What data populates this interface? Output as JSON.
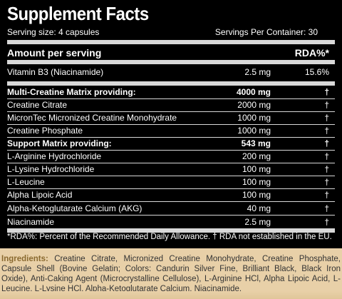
{
  "title": "Supplement Facts",
  "serving_size": "Serving size: 4 capsules",
  "servings_per_container": "Servings Per Container: 30",
  "amount_header": "Amount per serving",
  "rda_header": "RDA%*",
  "rows": [
    {
      "name": "Vitamin B3 (Niacinamide)",
      "amount": "2.5 mg",
      "rda": "15.6%"
    },
    {
      "name": "Multi-Creatine Matrix providing:",
      "amount": "4000 mg",
      "rda": "†"
    },
    {
      "name": "Creatine Citrate",
      "amount": "2000 mg",
      "rda": "†"
    },
    {
      "name": "MicronTec Micronized Creatine Monohydrate",
      "amount": "1000 mg",
      "rda": "†"
    },
    {
      "name": "Creatine Phosphate",
      "amount": "1000 mg",
      "rda": "†"
    },
    {
      "name": "Support Matrix providing:",
      "amount": "543 mg",
      "rda": "†"
    },
    {
      "name": "L-Arginine Hydrochloride",
      "amount": "200 mg",
      "rda": "†"
    },
    {
      "name": "L-Lysine Hydrochloride",
      "amount": "100 mg",
      "rda": "†"
    },
    {
      "name": "L-Leucine",
      "amount": "100 mg",
      "rda": "†"
    },
    {
      "name": "Alpha Lipoic Acid",
      "amount": "100 mg",
      "rda": "†"
    },
    {
      "name": "Alpha-Ketoglutarate Calcium (AKG)",
      "amount": "40 mg",
      "rda": "†"
    },
    {
      "name": "Niacinamide",
      "amount": "2.5 mg",
      "rda": "†"
    }
  ],
  "footnote": "*RDA%: Percent of the Recommended Daily Allowance. † RDA not established in the EU.",
  "ingredients_label": "Ingredients:",
  "ingredients_text": "Creatine Citrate, Micronized Creatine Monohydrate, Creatine Phosphate, Capsule Shell (Bovine Gelatin; Colors: Candurin Silver Fine, Brilliant Black, Black Iron Oxide), Anti-Caking Agent (Microcrystalline Cellulose), L-Arginine HCl, Alpha Lipoic Acid, L-Leucine, L-Lysine HCl, Alpha-Ketoglutarate Calcium, Niacinamide."
}
